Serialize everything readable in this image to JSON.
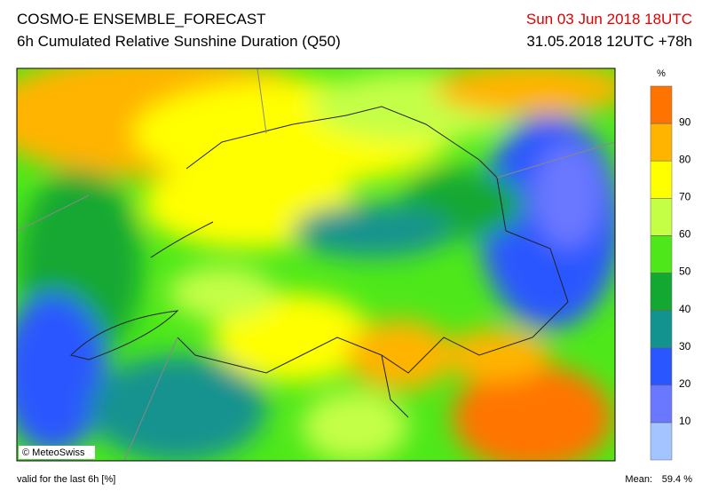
{
  "header": {
    "title": "COSMO-E ENSEMBLE_FORECAST",
    "subtitle": "6h Cumulated Relative Sunshine Duration (Q50)",
    "valid_time": "Sun 03 Jun 2018 18UTC",
    "run": "31.05.2018 12UTC +78h"
  },
  "map": {
    "credit": "© MeteoSwiss"
  },
  "colorbar": {
    "unit": "%",
    "range": [
      0,
      100
    ],
    "ticks": [
      10,
      20,
      30,
      40,
      50,
      60,
      70,
      80,
      90
    ],
    "colors": [
      "#a4c4ff",
      "#6a78ff",
      "#2a56ff",
      "#12938f",
      "#12a832",
      "#4ee81a",
      "#c4ff46",
      "#ffff00",
      "#ffb400",
      "#ff7400"
    ]
  },
  "footer": {
    "note": "valid for the last 6h [%]",
    "mean_label": "Mean:",
    "mean": "59.4 %"
  }
}
